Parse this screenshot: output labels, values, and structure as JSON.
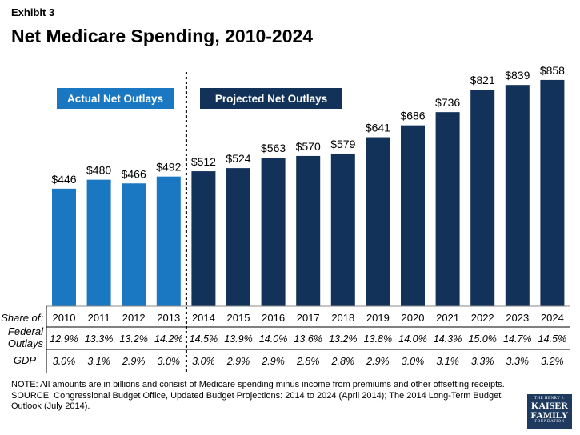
{
  "exhibit": "Exhibit 3",
  "chart_data": {
    "type": "bar",
    "title": "Net Medicare Spending, 2010-2024",
    "categories": [
      "2010",
      "2011",
      "2012",
      "2013",
      "2014",
      "2015",
      "2016",
      "2017",
      "2018",
      "2019",
      "2020",
      "2021",
      "2022",
      "2023",
      "2024"
    ],
    "values": [
      446,
      480,
      466,
      492,
      512,
      524,
      563,
      570,
      579,
      641,
      686,
      736,
      821,
      839,
      858
    ],
    "value_labels": [
      "$446",
      "$480",
      "$466",
      "$492",
      "$512",
      "$524",
      "$563",
      "$570",
      "$579",
      "$641",
      "$686",
      "$736",
      "$821",
      "$839",
      "$858"
    ],
    "groups": [
      {
        "label": "Actual Net Outlays",
        "count": 4,
        "color": "#1a78c2"
      },
      {
        "label": "Projected Net Outlays",
        "count": 11,
        "color": "#12325a"
      }
    ],
    "ylim": [
      0,
      900
    ],
    "grid": false,
    "table": {
      "header_label": "Share of:",
      "rows": [
        {
          "label_lines": [
            "Federal",
            "Outlays"
          ],
          "values": [
            "12.9%",
            "13.3%",
            "13.2%",
            "14.2%",
            "14.5%",
            "13.9%",
            "14.0%",
            "13.6%",
            "13.2%",
            "13.8%",
            "14.0%",
            "14.3%",
            "15.0%",
            "14.7%",
            "14.5%"
          ]
        },
        {
          "label_lines": [
            "GDP"
          ],
          "values": [
            "3.0%",
            "3.1%",
            "2.9%",
            "3.0%",
            "3.0%",
            "2.9%",
            "2.9%",
            "2.8%",
            "2.8%",
            "2.9%",
            "3.0%",
            "3.1%",
            "3.3%",
            "3.3%",
            "3.2%"
          ]
        }
      ]
    }
  },
  "note": "NOTE: All amounts are in billions and consist of Medicare spending minus income from premiums and other offsetting receipts.",
  "source": "SOURCE: Congressional Budget Office, Updated Budget Projections: 2014 to 2024 (April 2014); The 2014 Long-Term Budget Outlook (July 2014).",
  "logo": {
    "line1": "THE HENRY J.",
    "line2": "KAISER",
    "line3": "FAMILY",
    "line4": "FOUNDATION"
  }
}
